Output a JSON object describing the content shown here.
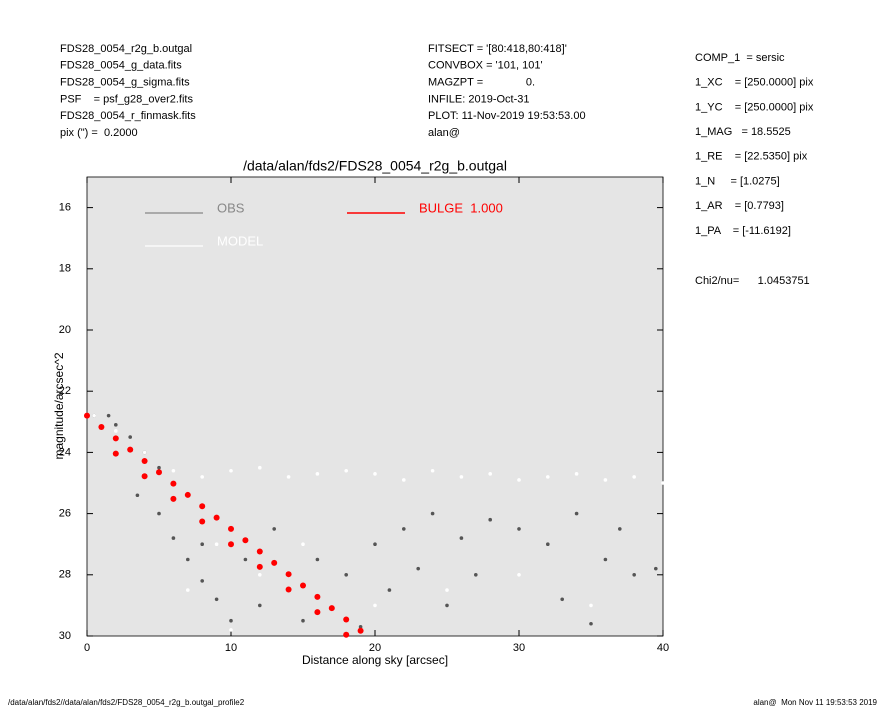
{
  "header": {
    "left": [
      "FDS28_0054_r2g_b.outgal",
      "FDS28_0054_g_data.fits",
      "FDS28_0054_g_sigma.fits",
      "PSF    = psf_g28_over2.fits",
      "FDS28_0054_r_finmask.fits",
      "pix (\") =  0.2000"
    ],
    "middle": [
      "FITSECT = '[80:418,80:418]'",
      "CONVBOX = '101, 101'",
      "MAGZPT =              0.",
      "INFILE: 2019-Oct-31",
      "PLOT: 11-Nov-2019 19:53:53.00",
      "alan@"
    ],
    "params": [
      "COMP_1  = sersic",
      "1_XC    = [250.0000] pix",
      "1_YC    = [250.0000] pix",
      "1_MAG   = 18.5525",
      "1_RE    = [22.5350] pix",
      "1_N     = [1.0275]",
      "1_AR    = [0.7793]",
      "1_PA    = [-11.6192]"
    ],
    "chi2": "Chi2/nu=      1.0453751"
  },
  "footer": {
    "left": "/data/alan/fds2//data/alan/fds2/FDS28_0054_r2g_b.outgal_profile2",
    "right": "alan@  Mon Nov 11 19:53:53 2019"
  },
  "chart_data": {
    "type": "scatter",
    "title": "/data/alan/fds2/FDS28_0054_r2g_b.outgal",
    "x_label": "Distance along sky [arcsec]",
    "y_label": "magnitude/arcsec^2",
    "xlim": [
      0,
      40
    ],
    "xticks": [
      0,
      10,
      20,
      30,
      40
    ],
    "ylim": [
      15,
      30
    ],
    "yticks": [
      16,
      18,
      20,
      22,
      24,
      26,
      28,
      30
    ],
    "y_reversed": true,
    "series": [
      {
        "name": "OBS",
        "color": "#555555",
        "x": [
          0.5,
          1.5,
          2,
          3,
          4,
          5,
          3.5,
          5,
          6,
          7,
          8,
          9,
          10,
          12,
          14,
          16,
          18,
          20,
          22,
          24,
          26,
          28,
          30,
          32,
          34,
          36,
          38,
          39.5,
          15,
          25,
          35,
          11,
          13,
          21,
          27,
          33,
          37,
          19,
          8,
          23
        ],
        "values": [
          22.8,
          22.8,
          23.1,
          23.5,
          24,
          24.5,
          25.4,
          26,
          26.8,
          27.5,
          28.2,
          28.8,
          29.5,
          29,
          28.5,
          27.5,
          28,
          27,
          26.5,
          26,
          26.8,
          26.2,
          26.5,
          27,
          26,
          27.5,
          28,
          27.8,
          29.5,
          29,
          29.6,
          27.5,
          26.5,
          28.5,
          28,
          28.8,
          26.5,
          29.7,
          27,
          27.8
        ]
      },
      {
        "name": "MODEL",
        "color": "#ffffff",
        "x": [
          0.5,
          2,
          4,
          6,
          8,
          10,
          12,
          14,
          16,
          18,
          20,
          22,
          24,
          26,
          28,
          30,
          32,
          34,
          36,
          38,
          40,
          9,
          12,
          15,
          20,
          25,
          30,
          35,
          7,
          10
        ],
        "values": [
          22.8,
          23.3,
          24,
          24.6,
          24.8,
          24.6,
          24.5,
          24.8,
          24.7,
          24.6,
          24.7,
          24.9,
          24.6,
          24.8,
          24.7,
          24.9,
          24.8,
          24.7,
          24.9,
          24.8,
          25,
          27,
          28,
          27,
          29,
          28.5,
          28,
          29,
          28.5,
          29.8
        ]
      },
      {
        "name": "BULGE  1.000",
        "color": "#ff0000",
        "x": [
          0,
          1,
          2,
          3,
          4,
          5,
          6,
          7,
          8,
          9,
          10,
          11,
          12,
          13,
          14,
          15,
          16,
          17,
          18,
          19,
          2,
          4,
          6,
          8,
          10,
          12,
          14,
          16,
          18
        ],
        "values": [
          22.8,
          23.17,
          23.54,
          23.91,
          24.28,
          24.65,
          25.02,
          25.39,
          25.76,
          26.13,
          26.5,
          26.87,
          27.24,
          27.61,
          27.98,
          28.35,
          28.72,
          29.09,
          29.46,
          29.83,
          24.04,
          24.78,
          25.52,
          26.26,
          27.0,
          27.74,
          28.48,
          29.22,
          29.96
        ]
      }
    ],
    "plot_background": "#e5e5e5"
  }
}
